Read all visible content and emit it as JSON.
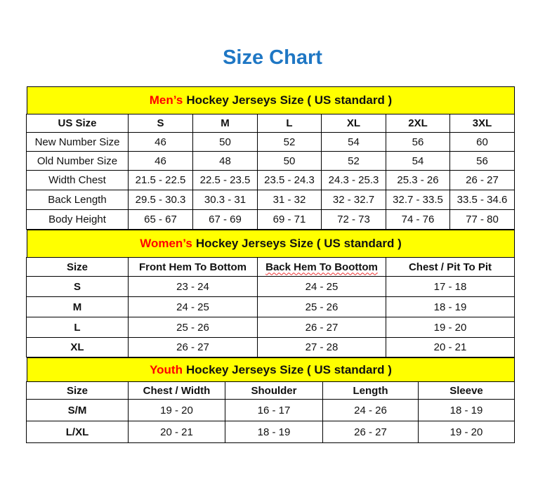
{
  "title": "Size Chart",
  "men": {
    "highlight": "Men’s",
    "heading": "Hockey Jerseys Size ( US standard )",
    "columns": [
      "US Size",
      "S",
      "M",
      "L",
      "XL",
      "2XL",
      "3XL"
    ],
    "rows": [
      [
        "New Number Size",
        "46",
        "50",
        "52",
        "54",
        "56",
        "60"
      ],
      [
        "Old Number Size",
        "46",
        "48",
        "50",
        "52",
        "54",
        "56"
      ],
      [
        "Width Chest",
        "21.5 - 22.5",
        "22.5 - 23.5",
        "23.5 - 24.3",
        "24.3 - 25.3",
        "25.3 - 26",
        "26 - 27"
      ],
      [
        "Back Length",
        "29.5 - 30.3",
        "30.3 - 31",
        "31 - 32",
        "32 - 32.7",
        "32.7 - 33.5",
        "33.5 - 34.6"
      ],
      [
        "Body Height",
        "65 - 67",
        "67 - 69",
        "69 - 71",
        "72 - 73",
        "74 - 76",
        "77 - 80"
      ]
    ]
  },
  "women": {
    "highlight": "Women’s",
    "heading": "Hockey Jerseys Size ( US standard )",
    "columns": [
      "Size",
      "Front Hem To Bottom",
      "Back Hem To Boottom",
      "Chest / Pit To Pit"
    ],
    "rows": [
      [
        "S",
        "23 - 24",
        "24 - 25",
        "17 - 18"
      ],
      [
        "M",
        "24 - 25",
        "25 - 26",
        "18 - 19"
      ],
      [
        "L",
        "25 - 26",
        "26 - 27",
        "19 - 20"
      ],
      [
        "XL",
        "26 - 27",
        "27 - 28",
        "20 - 21"
      ]
    ]
  },
  "youth": {
    "highlight": "Youth",
    "heading": "Hockey Jerseys Size ( US standard )",
    "columns": [
      "Size",
      "Chest / Width",
      "Shoulder",
      "Length",
      "Sleeve"
    ],
    "rows": [
      [
        "S/M",
        "19 - 20",
        "16 - 17",
        "24 - 26",
        "18 - 19"
      ],
      [
        "L/XL",
        "20 - 21",
        "18 - 19",
        "26 - 27",
        "19 - 20"
      ]
    ]
  },
  "colors": {
    "title": "#1f77c4",
    "band": "#ffff00",
    "highlight": "#ff0000"
  }
}
